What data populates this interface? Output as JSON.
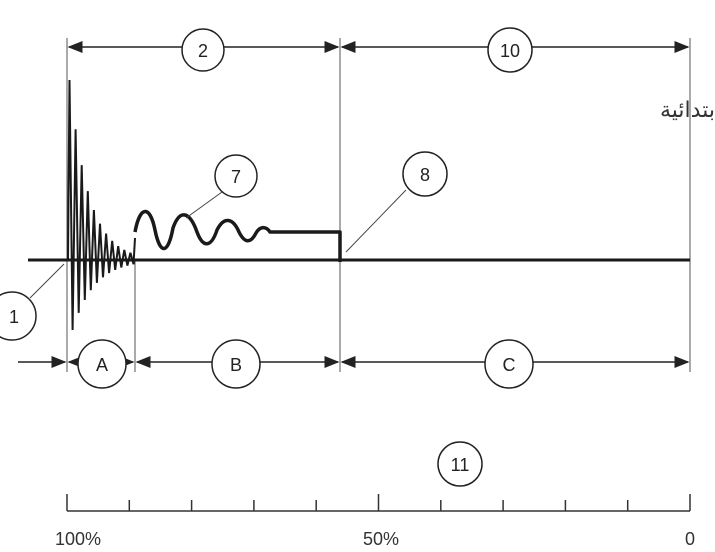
{
  "diagram": {
    "title_arabic": "الدائرة الابتدائية",
    "callouts": {
      "c1": "1",
      "c2": "2",
      "c7": "7",
      "c8": "8",
      "c10": "10",
      "c11": "11"
    },
    "phases": {
      "a": "A",
      "b": "B",
      "c": "C"
    },
    "scale": {
      "left": "100%",
      "mid": "50%",
      "right": "0"
    },
    "colors": {
      "line": "#1a1a1a",
      "thin": "#555555",
      "background": "#ffffff"
    }
  }
}
